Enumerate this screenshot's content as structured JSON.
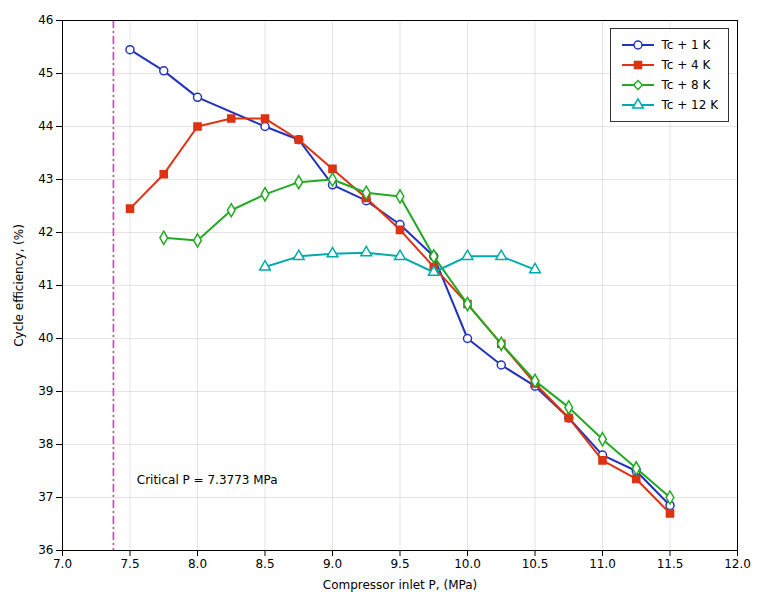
{
  "chart_data": {
    "type": "line",
    "xlabel": "Compressor inlet P, (MPa)",
    "ylabel": "Cycle efficiency, (%)",
    "xlim": [
      7.0,
      12.0
    ],
    "ylim": [
      36,
      46
    ],
    "xticks": [
      {
        "value": 7,
        "label": "7.0"
      },
      7.5,
      {
        "value": 8,
        "label": "8.0"
      },
      8.5,
      {
        "value": 9,
        "label": "9.0"
      },
      9.5,
      {
        "value": 10,
        "label": "10.0"
      },
      10.5,
      {
        "value": 11,
        "label": "11.0"
      },
      11.5,
      {
        "value": 12,
        "label": "12.0"
      }
    ],
    "yticks": [
      36,
      37,
      38,
      39,
      40,
      41,
      42,
      43,
      44,
      45,
      46
    ],
    "grid": true,
    "legend": "upper right",
    "vline": {
      "x": 7.3773,
      "color": "#cc55aa",
      "line_style": "dashdot"
    },
    "annotations": [
      {
        "text": "Critical P = 7.3773 MPa",
        "x": 7.55,
        "y": 37.25
      }
    ],
    "series": [
      {
        "name": "Tc + 1 K",
        "color": "#2233bb",
        "marker": "circle-open",
        "x": [
          7.5,
          7.75,
          8.0,
          8.5,
          8.75,
          9.0,
          9.25,
          9.5,
          9.75,
          10.0,
          10.25,
          10.5,
          10.75,
          11.0,
          11.25,
          11.5
        ],
        "values": [
          45.45,
          45.05,
          44.55,
          44.0,
          43.75,
          42.9,
          42.6,
          42.15,
          41.55,
          40.0,
          39.5,
          39.1,
          38.5,
          37.8,
          37.5,
          36.85
        ]
      },
      {
        "name": "Tc + 4 K",
        "color": "#dd3311",
        "marker": "square",
        "x": [
          7.5,
          7.75,
          8.0,
          8.25,
          8.5,
          8.75,
          9.0,
          9.25,
          9.5,
          9.75,
          10.0,
          10.25,
          10.5,
          10.75,
          11.0,
          11.25,
          11.5
        ],
        "values": [
          42.45,
          43.1,
          44.0,
          44.15,
          44.15,
          43.75,
          43.2,
          42.65,
          42.05,
          41.35,
          40.65,
          39.9,
          39.15,
          38.5,
          37.7,
          37.35,
          36.7
        ]
      },
      {
        "name": "Tc + 8 K",
        "color": "#22aa22",
        "marker": "diamond-open",
        "x": [
          7.75,
          8.0,
          8.25,
          8.5,
          8.75,
          9.0,
          9.25,
          9.5,
          9.75,
          10.0,
          10.25,
          10.5,
          10.75,
          11.0,
          11.25,
          11.5
        ],
        "values": [
          41.9,
          41.85,
          42.42,
          42.72,
          42.95,
          43.0,
          42.75,
          42.68,
          41.55,
          40.65,
          39.9,
          39.2,
          38.7,
          38.1,
          37.55,
          37.0
        ]
      },
      {
        "name": "Tc + 12 K",
        "color": "#00aaaa",
        "marker": "triangle-open",
        "x": [
          8.5,
          8.75,
          9.0,
          9.25,
          9.5,
          9.75,
          10.0,
          10.25,
          10.5
        ],
        "values": [
          41.35,
          41.55,
          41.6,
          41.62,
          41.55,
          41.25,
          41.55,
          41.55,
          41.3
        ]
      }
    ]
  }
}
